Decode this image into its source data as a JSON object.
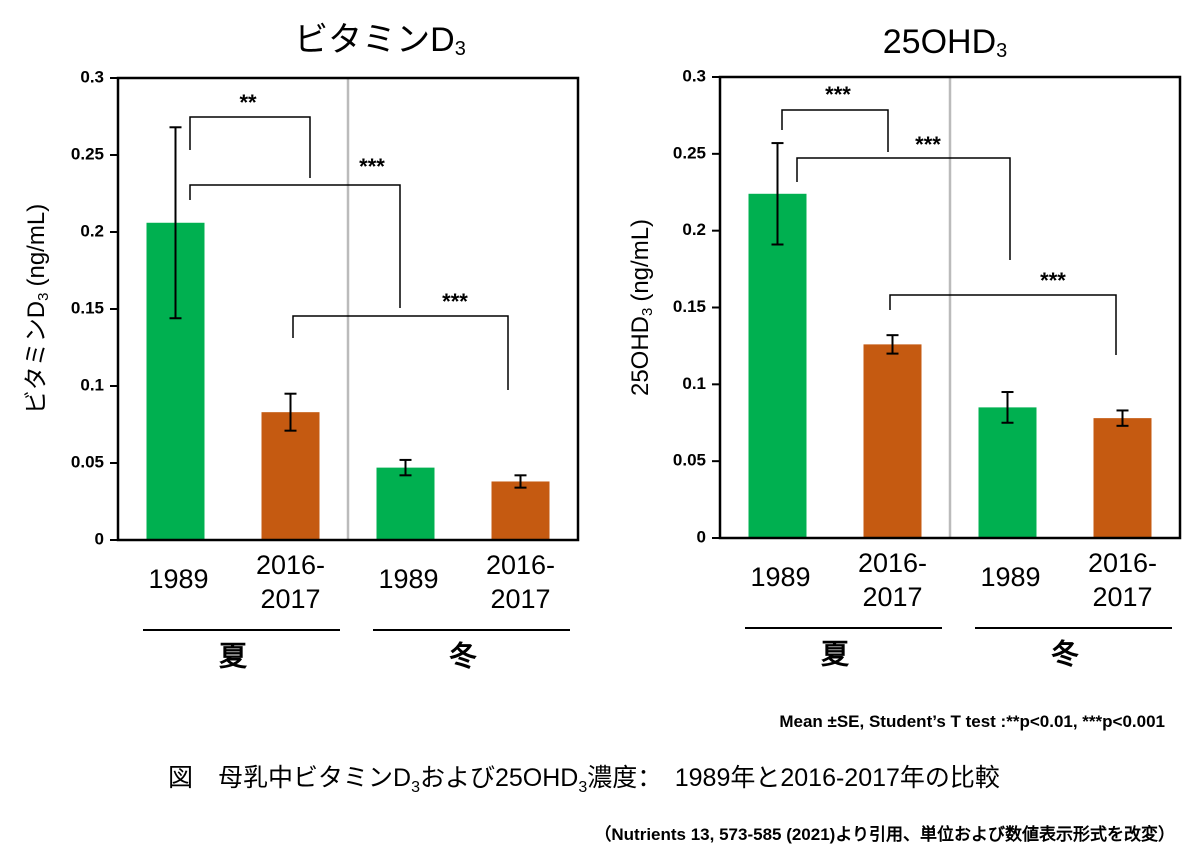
{
  "chart_data": [
    {
      "type": "bar",
      "title": "ビタミンD",
      "title_subscript": "3",
      "ylabel": "ビタミンD",
      "ylabel_subscript": "3",
      "ylabel_unit": "(ng/mL)",
      "categories": [
        "1989",
        "2016-2017",
        "1989",
        "2016-2017"
      ],
      "values": [
        0.206,
        0.083,
        0.047,
        0.038
      ],
      "errors": [
        0.062,
        0.012,
        0.005,
        0.004
      ],
      "colors": [
        "#00b050",
        "#c55a11",
        "#00b050",
        "#c55a11"
      ],
      "groups": [
        "夏",
        "冬"
      ],
      "significance": [
        "**",
        "***",
        "***"
      ],
      "ylim": [
        0,
        0.3
      ],
      "yticks": [
        0,
        0.05,
        0.1,
        0.15,
        0.2,
        0.25,
        0.3
      ]
    },
    {
      "type": "bar",
      "title": "25OHD",
      "title_subscript": "3",
      "ylabel": "25OHD",
      "ylabel_subscript": "3",
      "ylabel_unit": "(ng/mL)",
      "categories": [
        "1989",
        "2016-2017",
        "1989",
        "2016-2017"
      ],
      "values": [
        0.224,
        0.126,
        0.085,
        0.078
      ],
      "errors": [
        0.033,
        0.006,
        0.01,
        0.005
      ],
      "colors": [
        "#00b050",
        "#c55a11",
        "#00b050",
        "#c55a11"
      ],
      "groups": [
        "夏",
        "冬"
      ],
      "significance": [
        "***",
        "***",
        "***"
      ],
      "ylim": [
        0,
        0.3
      ],
      "yticks": [
        0,
        0.05,
        0.1,
        0.15,
        0.2,
        0.25,
        0.3
      ]
    }
  ],
  "footer": {
    "note": "Mean ±SE, Student’s T test :**p<0.01, ***p<0.001",
    "caption": [
      "図　母乳中ビタミンD",
      "3",
      "および25OHD",
      "3",
      "濃度：　1989年と2016-2017年の比較"
    ],
    "source": "（Nutrients 13, 573-585 (2021)より引用、単位および数値表示形式を改変）"
  }
}
